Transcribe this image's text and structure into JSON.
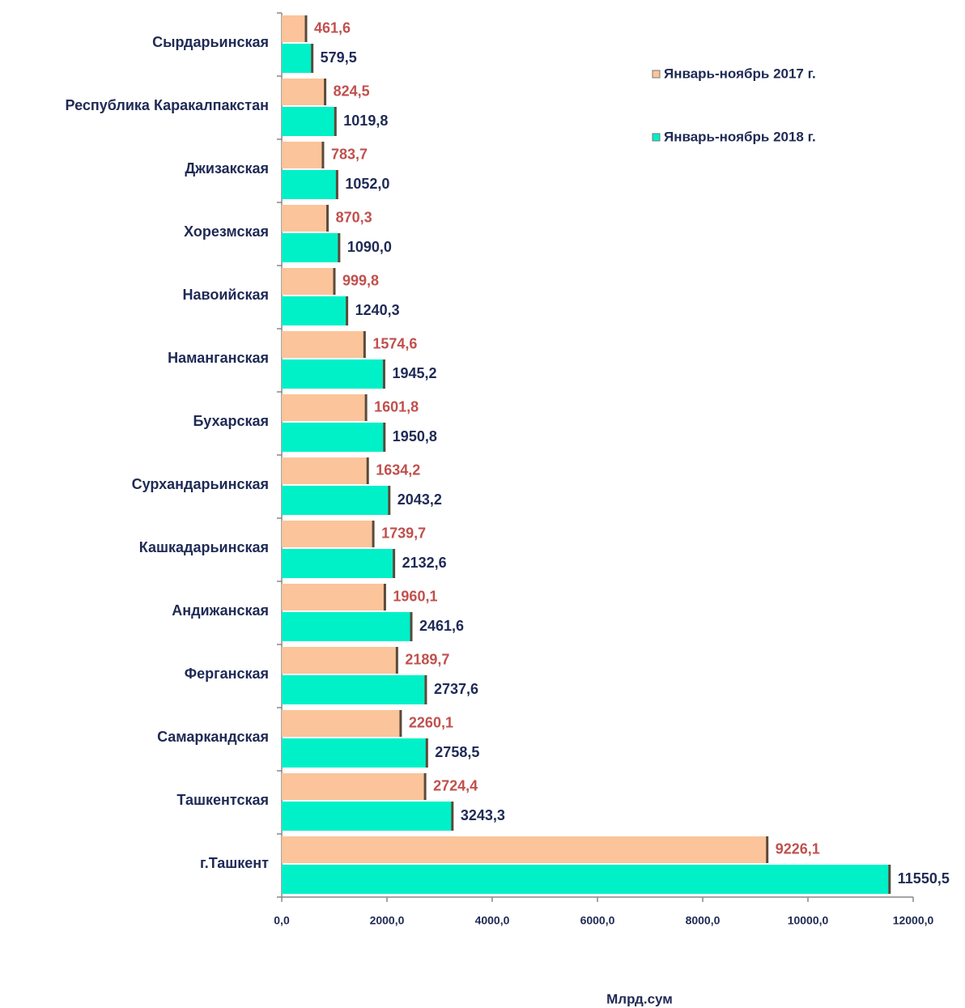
{
  "chart_data": {
    "type": "bar",
    "orientation": "horizontal",
    "xlabel": "Млрд.сум",
    "categories": [
      "Сырдарьинская",
      "Республика  Каракалпакстан",
      "Джизакская",
      "Хорезмская",
      "Навоийская",
      "Наманганская",
      "Бухарская",
      "Сурхандарьинская",
      "Кашкадарьинская",
      "Андижанская",
      "Ферганская",
      "Самаркандская",
      "Ташкентская",
      "г.Ташкент"
    ],
    "series": [
      {
        "name": "Январь-ноябрь 2017 г.",
        "color": "#fbc49a",
        "label_color": "#c0504d",
        "values": [
          461.6,
          824.5,
          783.7,
          870.3,
          999.8,
          1574.6,
          1601.8,
          1634.2,
          1739.7,
          1960.1,
          2189.7,
          2260.1,
          2724.4,
          9226.1
        ],
        "value_labels": [
          "461,6",
          "824,5",
          "783,7",
          "870,3",
          "999,8",
          "1574,6",
          "1601,8",
          "1634,2",
          "1739,7",
          "1960,1",
          "2189,7",
          "2260,1",
          "2724,4",
          "9226,1"
        ]
      },
      {
        "name": "Январь-ноябрь 2018 г.",
        "color": "#00f0c8",
        "label_color": "#1f2a55",
        "values": [
          579.5,
          1019.8,
          1052.0,
          1090.0,
          1240.3,
          1945.2,
          1950.8,
          2043.2,
          2132.6,
          2461.6,
          2737.6,
          2758.5,
          3243.3,
          11550.5
        ],
        "value_labels": [
          "579,5",
          "1019,8",
          "1052,0",
          "1090,0",
          "1240,3",
          "1945,2",
          "1950,8",
          "2043,2",
          "2132,6",
          "2461,6",
          "2737,6",
          "2758,5",
          "3243,3",
          "11550,5"
        ]
      }
    ],
    "xlim": [
      0,
      12000
    ],
    "xticks": [
      {
        "value": 0,
        "label": "0,0"
      },
      {
        "value": 2000,
        "label": "2000,0"
      },
      {
        "value": 4000,
        "label": "4000,0"
      },
      {
        "value": 6000,
        "label": "6000,0"
      },
      {
        "value": 8000,
        "label": "8000,0"
      },
      {
        "value": 10000,
        "label": "10000,0"
      },
      {
        "value": 12000,
        "label": "12000,0"
      }
    ],
    "grid": false
  }
}
